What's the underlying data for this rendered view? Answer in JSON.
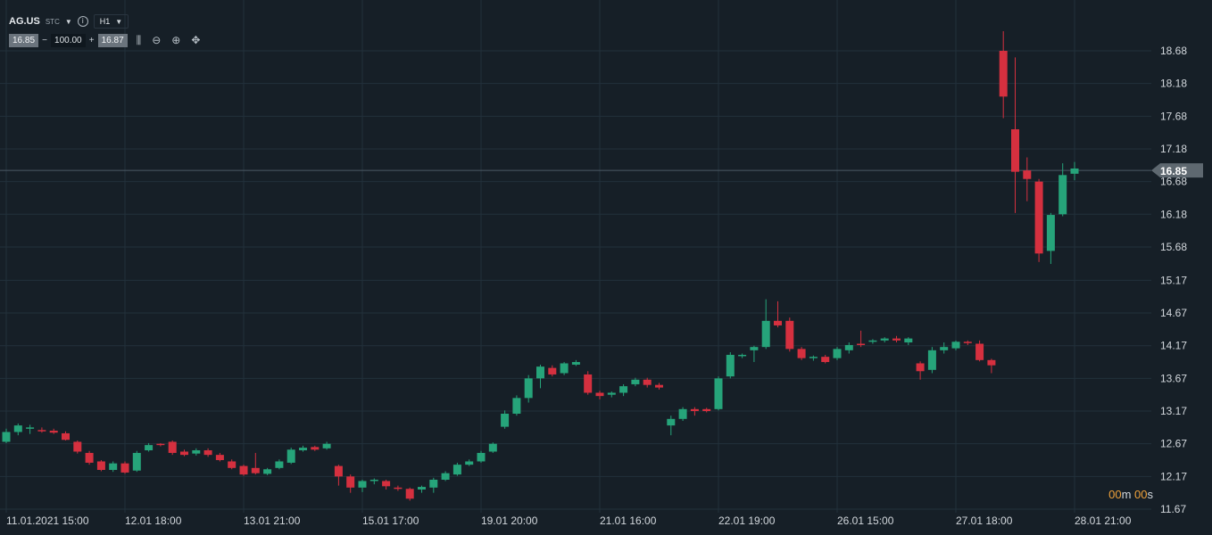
{
  "header": {
    "symbol": "AG.US",
    "market_type": "STC",
    "timeframe": "H1"
  },
  "order": {
    "sell_price": "16.85",
    "minus": "−",
    "quantity": "100.00",
    "plus": "+",
    "buy_price": "16.87"
  },
  "toolbar": {
    "candles_icon": "candlestick-icon",
    "zoom_out_icon": "zoom-out-icon",
    "zoom_in_icon": "zoom-in-icon",
    "move_icon": "crosshair-move-icon"
  },
  "colors": {
    "background": "#161f27",
    "grid": "#22303b",
    "up": "#26a47a",
    "down": "#d5303f",
    "axis_text": "#d3d8dd",
    "price_tag": "#5e6870",
    "timer": "#f0a23a"
  },
  "timer": {
    "minutes": "00",
    "m": "m",
    "seconds": "00",
    "s": "s"
  },
  "chart_data": {
    "type": "candlestick",
    "current_price": 16.85,
    "current_price_label": "16.85",
    "ylim": [
      11.67,
      18.68
    ],
    "y_ticks": [
      "18.68",
      "18.18",
      "17.68",
      "17.18",
      "16.68",
      "16.18",
      "15.68",
      "15.17",
      "14.67",
      "14.17",
      "13.67",
      "13.17",
      "12.67",
      "12.17",
      "11.67"
    ],
    "x_ticks": [
      "11.01.2021 15:00",
      "12.01 18:00",
      "13.01 21:00",
      "15.01 17:00",
      "19.01 20:00",
      "21.01 16:00",
      "22.01 19:00",
      "26.01 15:00",
      "27.01 18:00",
      "28.01 21:00"
    ],
    "x_tick_index": [
      0,
      10,
      20,
      30,
      40,
      50,
      60,
      70,
      80,
      90
    ],
    "candles": [
      [
        12.7,
        12.85,
        12.9,
        12.68
      ],
      [
        12.85,
        12.95,
        12.98,
        12.8
      ],
      [
        12.9,
        12.92,
        12.96,
        12.82
      ],
      [
        12.88,
        12.86,
        12.92,
        12.84
      ],
      [
        12.87,
        12.84,
        12.9,
        12.82
      ],
      [
        12.83,
        12.73,
        12.86,
        12.72
      ],
      [
        12.7,
        12.55,
        12.72,
        12.52
      ],
      [
        12.53,
        12.38,
        12.56,
        12.35
      ],
      [
        12.4,
        12.27,
        12.42,
        12.25
      ],
      [
        12.27,
        12.37,
        12.4,
        12.24
      ],
      [
        12.37,
        12.23,
        12.4,
        12.21
      ],
      [
        12.26,
        12.53,
        12.56,
        12.24
      ],
      [
        12.57,
        12.65,
        12.68,
        12.55
      ],
      [
        12.67,
        12.65,
        12.68,
        12.63
      ],
      [
        12.7,
        12.53,
        12.72,
        12.5
      ],
      [
        12.55,
        12.5,
        12.58,
        12.48
      ],
      [
        12.52,
        12.57,
        12.6,
        12.49
      ],
      [
        12.57,
        12.5,
        12.6,
        12.47
      ],
      [
        12.5,
        12.42,
        12.53,
        12.4
      ],
      [
        12.4,
        12.3,
        12.43,
        12.28
      ],
      [
        12.33,
        12.2,
        12.35,
        12.18
      ],
      [
        12.3,
        12.22,
        12.53,
        12.2
      ],
      [
        12.21,
        12.28,
        12.3,
        12.19
      ],
      [
        12.3,
        12.4,
        12.43,
        12.28
      ],
      [
        12.38,
        12.58,
        12.61,
        12.36
      ],
      [
        12.57,
        12.61,
        12.64,
        12.55
      ],
      [
        12.62,
        12.58,
        12.64,
        12.56
      ],
      [
        12.6,
        12.67,
        12.7,
        12.58
      ],
      [
        12.33,
        12.17,
        12.35,
        12.03
      ],
      [
        12.17,
        12.0,
        12.2,
        11.92
      ],
      [
        12.0,
        12.1,
        12.12,
        11.93
      ],
      [
        12.1,
        12.12,
        12.14,
        12.05
      ],
      [
        12.1,
        12.02,
        12.12,
        11.97
      ],
      [
        12.0,
        11.99,
        12.03,
        11.95
      ],
      [
        11.98,
        11.83,
        12.0,
        11.8
      ],
      [
        11.97,
        12.01,
        12.03,
        11.92
      ],
      [
        12.0,
        12.12,
        12.15,
        11.92
      ],
      [
        12.12,
        12.22,
        12.25,
        12.1
      ],
      [
        12.2,
        12.35,
        12.38,
        12.18
      ],
      [
        12.35,
        12.4,
        12.43,
        12.33
      ],
      [
        12.4,
        12.53,
        12.56,
        12.38
      ],
      [
        12.55,
        12.67,
        12.69,
        12.53
      ],
      [
        12.93,
        13.13,
        13.18,
        12.9
      ],
      [
        13.13,
        13.37,
        13.41,
        13.1
      ],
      [
        13.37,
        13.67,
        13.72,
        13.3
      ],
      [
        13.67,
        13.85,
        13.88,
        13.52
      ],
      [
        13.83,
        13.73,
        13.87,
        13.7
      ],
      [
        13.75,
        13.9,
        13.92,
        13.72
      ],
      [
        13.88,
        13.92,
        13.95,
        13.86
      ],
      [
        13.73,
        13.45,
        13.78,
        13.42
      ],
      [
        13.45,
        13.4,
        13.48,
        13.35
      ],
      [
        13.42,
        13.45,
        13.47,
        13.38
      ],
      [
        13.45,
        13.55,
        13.58,
        13.4
      ],
      [
        13.58,
        13.65,
        13.68,
        13.55
      ],
      [
        13.65,
        13.57,
        13.68,
        13.53
      ],
      [
        13.57,
        13.53,
        13.6,
        13.5
      ],
      [
        12.95,
        13.05,
        13.1,
        12.8
      ],
      [
        13.05,
        13.2,
        13.23,
        13.02
      ],
      [
        13.2,
        13.17,
        13.23,
        13.1
      ],
      [
        13.2,
        13.17,
        13.22,
        13.15
      ],
      [
        13.2,
        13.67,
        13.7,
        13.18
      ],
      [
        13.7,
        14.03,
        14.07,
        13.67
      ],
      [
        14.01,
        14.03,
        14.05,
        13.98
      ],
      [
        14.1,
        14.15,
        14.17,
        13.92
      ],
      [
        14.15,
        14.55,
        14.88,
        14.12
      ],
      [
        14.55,
        14.48,
        14.85,
        14.45
      ],
      [
        14.55,
        14.12,
        14.6,
        14.08
      ],
      [
        14.12,
        13.98,
        14.15,
        13.95
      ],
      [
        13.98,
        14.0,
        14.02,
        13.94
      ],
      [
        14.0,
        13.92,
        14.03,
        13.9
      ],
      [
        13.98,
        14.12,
        14.15,
        13.95
      ],
      [
        14.1,
        14.18,
        14.22,
        14.05
      ],
      [
        14.2,
        14.18,
        14.4,
        14.15
      ],
      [
        14.23,
        14.25,
        14.27,
        14.2
      ],
      [
        14.25,
        14.28,
        14.3,
        14.22
      ],
      [
        14.28,
        14.25,
        14.32,
        14.22
      ],
      [
        14.22,
        14.28,
        14.3,
        14.18
      ],
      [
        13.9,
        13.78,
        13.93,
        13.65
      ],
      [
        13.8,
        14.1,
        14.15,
        13.75
      ],
      [
        14.1,
        14.15,
        14.22,
        14.05
      ],
      [
        14.13,
        14.23,
        14.25,
        14.1
      ],
      [
        14.23,
        14.22,
        14.25,
        14.18
      ],
      [
        14.2,
        13.95,
        14.25,
        13.93
      ],
      [
        13.95,
        13.87,
        13.97,
        13.75
      ],
      [
        18.68,
        17.98,
        18.98,
        17.65
      ],
      [
        17.48,
        16.83,
        18.58,
        16.2
      ],
      [
        16.85,
        16.72,
        17.05,
        16.38
      ],
      [
        16.68,
        15.58,
        16.72,
        15.45
      ],
      [
        15.62,
        16.17,
        16.2,
        15.42
      ],
      [
        16.18,
        16.78,
        16.96,
        16.15
      ],
      [
        16.8,
        16.88,
        16.98,
        16.7
      ]
    ]
  }
}
